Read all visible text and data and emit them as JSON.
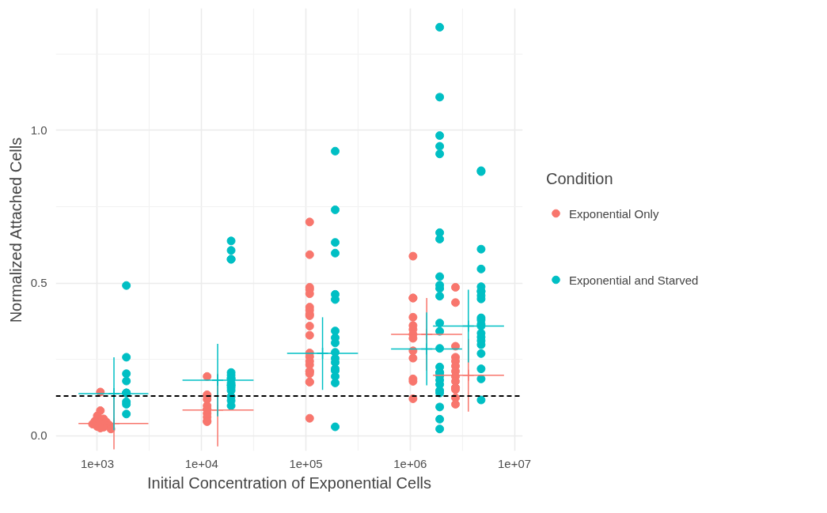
{
  "chart_data": {
    "type": "scatter",
    "xlabel": "Initial Concentration of Exponential Cells",
    "ylabel": "Normalized Attached Cells",
    "legend_title": "Condition",
    "log": "x",
    "xlim": [
      400,
      12000000
    ],
    "ylim": [
      -0.05,
      1.4
    ],
    "xticks": [
      {
        "value": 1000,
        "label": "1e+03"
      },
      {
        "value": 10000,
        "label": "1e+04"
      },
      {
        "value": 100000,
        "label": "1e+05"
      },
      {
        "value": 1000000,
        "label": "1e+06"
      },
      {
        "value": 10000000,
        "label": "1e+07"
      }
    ],
    "yticks": [
      {
        "value": 0,
        "label": "0.0"
      },
      {
        "value": 0.5,
        "label": "0.5"
      },
      {
        "value": 1,
        "label": "1.0"
      }
    ],
    "grid": true,
    "legend": "right",
    "marker": "circle",
    "ref_lines": [
      {
        "axis": "y",
        "value": 0.13,
        "label": null,
        "color": "#000000",
        "line_style": "dashed"
      }
    ],
    "series": [
      {
        "name": "Exponential Only",
        "color": "#f8766d",
        "x": [
          1070,
          1070,
          1000,
          1150,
          950,
          1220,
          1070,
          900,
          1300,
          1000,
          1150,
          1070,
          1350,
          11300,
          11300,
          11300,
          11300,
          11300,
          11300,
          11300,
          11300,
          11300,
          11300,
          11300,
          108700,
          108700,
          108700,
          108700,
          108700,
          108700,
          108700,
          108700,
          108700,
          108700,
          108700,
          108700,
          108700,
          108700,
          108700,
          108700,
          108700,
          108700,
          108700,
          108700,
          108700,
          1065000,
          1065000,
          1065000,
          1065000,
          1065000,
          1065000,
          1065000,
          1065000,
          1065000,
          1065000,
          1065000,
          1065000,
          1065000,
          2720000,
          2720000,
          2720000,
          2720000,
          2720000,
          2720000,
          2720000,
          2720000,
          2720000,
          2720000,
          2720000,
          2720000,
          2720000,
          2720000
        ],
        "values": [
          0.143,
          0.082,
          0.065,
          0.055,
          0.048,
          0.045,
          0.04,
          0.038,
          0.035,
          0.03,
          0.028,
          0.025,
          0.022,
          0.194,
          0.134,
          0.13,
          0.119,
          0.098,
          0.086,
          0.086,
          0.073,
          0.061,
          0.048,
          0.046,
          0.7,
          0.593,
          0.486,
          0.479,
          0.465,
          0.421,
          0.411,
          0.398,
          0.393,
          0.359,
          0.329,
          0.271,
          0.259,
          0.244,
          0.232,
          0.211,
          0.211,
          0.203,
          0.176,
          0.176,
          0.057,
          0.588,
          0.451,
          0.451,
          0.388,
          0.361,
          0.348,
          0.332,
          0.319,
          0.278,
          0.254,
          0.186,
          0.178,
          0.121,
          0.486,
          0.436,
          0.293,
          0.257,
          0.244,
          0.228,
          0.211,
          0.194,
          0.178,
          0.157,
          0.157,
          0.151,
          0.124,
          0.103
        ]
      },
      {
        "name": "Exponential and Starved",
        "color": "#00bfc4",
        "x": [
          1900,
          1900,
          1900,
          1900,
          1900,
          1900,
          1900,
          1900,
          1900,
          1900,
          19200,
          19200,
          19200,
          19200,
          19200,
          19200,
          19200,
          19200,
          19200,
          19200,
          19200,
          19200,
          19200,
          19200,
          19200,
          19200,
          191000,
          191000,
          191000,
          191000,
          191000,
          191000,
          191000,
          191000,
          191000,
          191000,
          191000,
          191000,
          191000,
          191000,
          191000,
          191000,
          191000,
          1920000,
          1920000,
          1920000,
          1920000,
          1920000,
          1920000,
          1920000,
          1920000,
          1920000,
          1920000,
          1920000,
          1920000,
          1920000,
          1920000,
          1920000,
          1920000,
          1920000,
          1920000,
          1920000,
          1920000,
          1920000,
          1920000,
          1920000,
          1920000,
          1920000,
          4790000,
          4790000,
          4790000,
          4790000,
          4790000,
          4790000,
          4790000,
          4790000,
          4790000,
          4790000,
          4790000,
          4790000,
          4790000,
          4790000,
          4790000,
          4790000,
          4790000,
          4790000,
          4790000,
          4790000,
          4790000
        ],
        "values": [
          0.492,
          0.257,
          0.203,
          0.179,
          0.14,
          0.14,
          0.14,
          0.111,
          0.103,
          0.071,
          0.638,
          0.607,
          0.578,
          0.578,
          0.207,
          0.198,
          0.188,
          0.187,
          0.173,
          0.165,
          0.165,
          0.157,
          0.148,
          0.128,
          0.115,
          0.098,
          0.932,
          0.74,
          0.633,
          0.598,
          0.463,
          0.446,
          0.343,
          0.321,
          0.304,
          0.273,
          0.253,
          0.24,
          0.219,
          0.213,
          0.194,
          0.173,
          0.029,
          1.338,
          1.109,
          0.983,
          0.948,
          0.923,
          0.665,
          0.644,
          0.521,
          0.493,
          0.482,
          0.457,
          0.369,
          0.342,
          0.286,
          0.225,
          0.207,
          0.207,
          0.196,
          0.182,
          0.168,
          0.148,
          0.14,
          0.094,
          0.054,
          0.022,
          0.868,
          0.865,
          0.611,
          0.546,
          0.488,
          0.473,
          0.473,
          0.459,
          0.448,
          0.386,
          0.379,
          0.365,
          0.359,
          0.336,
          0.323,
          0.311,
          0.298,
          0.269,
          0.219,
          0.186,
          0.117
        ]
      },
      {
        "color": "#f8766d",
        "marker": "cross",
        "x": [
          1445,
          14260,
          144500,
          1442000,
          3614000
        ],
        "values": [
          0.04,
          0.084,
          null,
          0.332,
          0.198
        ],
        "errors": [
          [
            -0.045,
            0.125
          ],
          [
            -0.035,
            0.203
          ],
          null,
          [
            0.213,
            0.451
          ],
          [
            0.079,
            0.317
          ]
        ],
        "xerrors": [
          [
            660,
            3090
          ],
          [
            6560,
            31500
          ],
          null,
          [
            656000,
            3148000
          ],
          [
            1656000,
            7940000
          ]
        ]
      },
      {
        "color": "#00bfc4",
        "marker": "cross",
        "x": [
          1445,
          14260,
          144500,
          1442000,
          3614000
        ],
        "values": [
          0.138,
          0.182,
          0.27,
          0.284,
          0.359
        ],
        "errors": [
          [
            0.018,
            0.257
          ],
          [
            0.063,
            0.301
          ],
          [
            0.15,
            0.388
          ],
          [
            0.165,
            0.404
          ],
          [
            0.24,
            0.478
          ]
        ],
        "xerrors": [
          [
            660,
            3090
          ],
          [
            6560,
            31500
          ],
          [
            66070,
            316200
          ],
          [
            656000,
            3148000
          ],
          [
            1656000,
            7940000
          ]
        ]
      }
    ]
  }
}
